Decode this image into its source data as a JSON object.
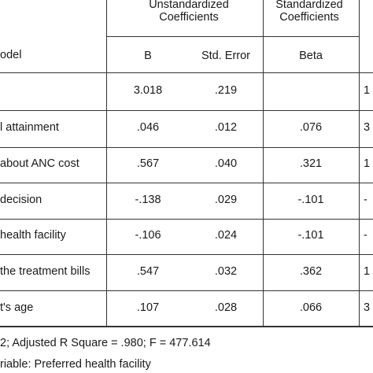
{
  "header": {
    "unstandardized": "Unstandardized Coefficients",
    "standardized": "Standardized Coefficients",
    "model": "odel",
    "b": "B",
    "std_error": "Std. Error",
    "beta": "Beta"
  },
  "rows": [
    {
      "label": "",
      "b": "3.018",
      "se": ".219",
      "beta": "",
      "t": "1"
    },
    {
      "label": "l attainment",
      "b": ".046",
      "se": ".012",
      "beta": ".076",
      "t": "3"
    },
    {
      "label": "about ANC cost",
      "b": ".567",
      "se": ".040",
      "beta": ".321",
      "t": "1"
    },
    {
      "label": "decision",
      "b": "-.138",
      "se": ".029",
      "beta": "-.101",
      "t": "-"
    },
    {
      "label": "health facility",
      "b": "-.106",
      "se": ".024",
      "beta": "-.101",
      "t": "-"
    },
    {
      "label": "the treatment bills",
      "b": ".547",
      "se": ".032",
      "beta": ".362",
      "t": "1"
    },
    {
      "label": "t's age",
      "b": ".107",
      "se": ".028",
      "beta": ".066",
      "t": "3"
    }
  ],
  "footnotes": {
    "stats": "2; Adjusted R Square = .980; F = 477.614",
    "dependent": "riable: Preferred health facility"
  }
}
